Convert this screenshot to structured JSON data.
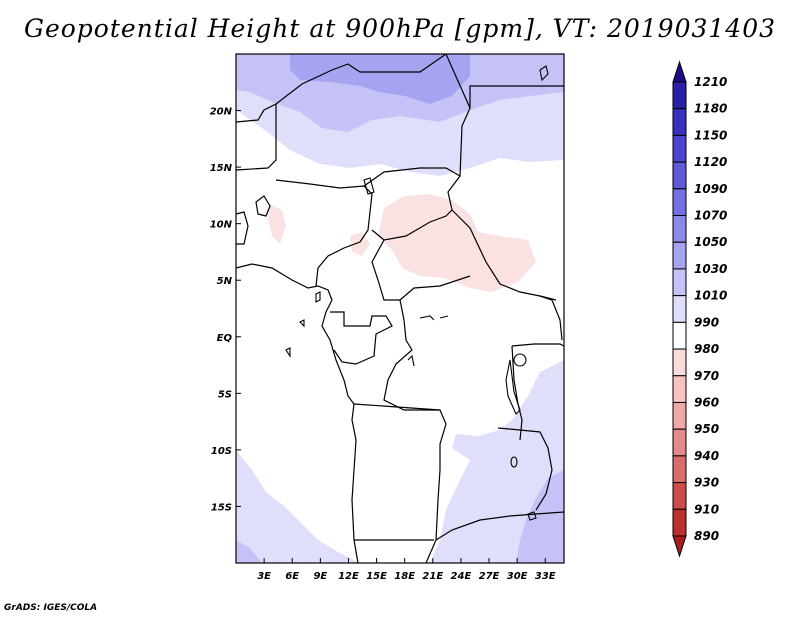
{
  "title": "Geopotential Height at 900hPa [gpm], VT: 2019031403",
  "credit": "GrADS: IGES/COLA",
  "chart_data": {
    "type": "heatmap",
    "title": "Geopotential Height at 900hPa [gpm], VT: 2019031403",
    "variable": "Geopotential Height",
    "level": "900hPa",
    "units": "gpm",
    "valid_time": "2019031403",
    "lon_range": [
      0,
      35
    ],
    "lat_range": [
      -20,
      25
    ],
    "x_ticks": [
      "3E",
      "6E",
      "9E",
      "12E",
      "15E",
      "18E",
      "21E",
      "24E",
      "27E",
      "30E",
      "33E"
    ],
    "x_tick_values": [
      3,
      6,
      9,
      12,
      15,
      18,
      21,
      24,
      27,
      30,
      33
    ],
    "y_ticks": [
      "20N",
      "15N",
      "10N",
      "5N",
      "EQ",
      "5S",
      "10S",
      "15S"
    ],
    "y_tick_values": [
      20,
      15,
      10,
      5,
      0,
      -5,
      -10,
      -15
    ],
    "colorbar": {
      "levels": [
        "1210",
        "1180",
        "1150",
        "1120",
        "1090",
        "1070",
        "1050",
        "1030",
        "1010",
        "990",
        "980",
        "970",
        "960",
        "950",
        "940",
        "930",
        "910",
        "890"
      ],
      "colors": [
        "#1d0d8a",
        "#2a20a8",
        "#3a30c0",
        "#4a44d0",
        "#5e5ad8",
        "#7470e2",
        "#8c88ea",
        "#a6a3f0",
        "#c4c2f6",
        "#e0dffb",
        "#ffffff",
        "#fbdcdc",
        "#f6c2c2",
        "#eea8a8",
        "#e48a8a",
        "#d96c6c",
        "#cc4c4c",
        "#bd3030",
        "#a81e1e"
      ]
    }
  }
}
